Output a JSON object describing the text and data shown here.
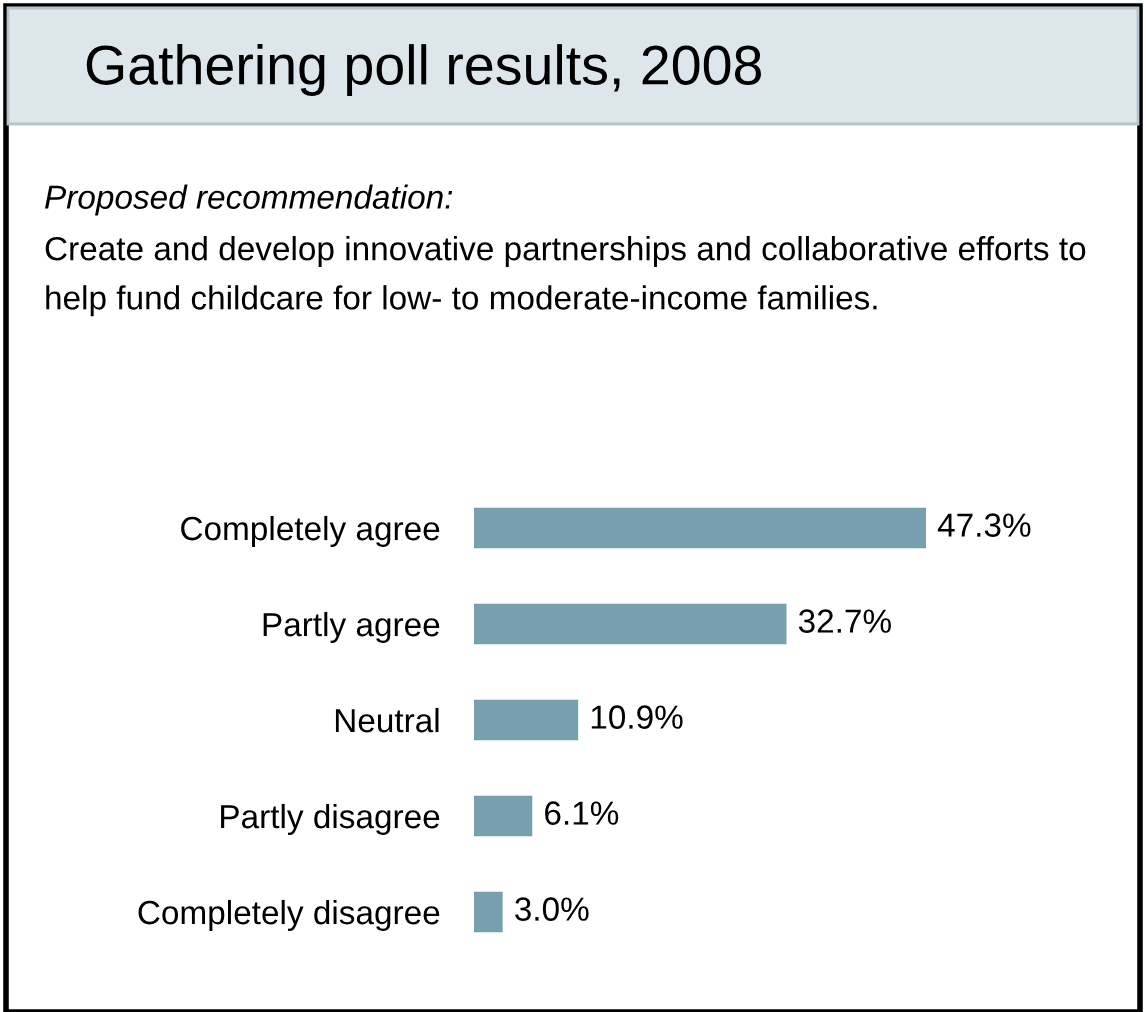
{
  "chart_data": {
    "type": "bar",
    "orientation": "horizontal",
    "title": "Gathering poll results, 2008",
    "subtitle": "Proposed recommendation:",
    "annotations": [
      "Create and develop innovative partnerships and collaborative efforts to help fund childcare for low- to moderate-income families."
    ],
    "categories": [
      "Completely agree",
      "Partly agree",
      "Neutral",
      "Partly disagree",
      "Completely disagree"
    ],
    "values": [
      47.3,
      32.7,
      10.9,
      6.1,
      3.0
    ],
    "value_labels": [
      "47.3%",
      "32.7%",
      "10.9%",
      "6.1%",
      "3.0%"
    ],
    "color": "#789fae",
    "grid": false,
    "legend": false
  }
}
